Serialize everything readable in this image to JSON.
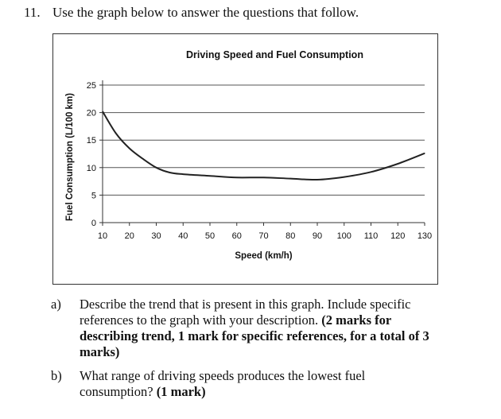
{
  "question": {
    "number": "11.",
    "prompt": "Use the graph below to answer the questions that follow."
  },
  "chart_data": {
    "type": "line",
    "title": "Driving Speed and Fuel Consumption",
    "xlabel": "Speed (km/h)",
    "ylabel": "Fuel Consumption (L/100 km)",
    "xlim": [
      10,
      130
    ],
    "ylim": [
      0,
      25
    ],
    "x_ticks": [
      "10",
      "20",
      "30",
      "40",
      "50",
      "60",
      "70",
      "80",
      "90",
      "100",
      "110",
      "120",
      "130"
    ],
    "y_ticks": [
      "0",
      "5",
      "10",
      "15",
      "20",
      "25"
    ],
    "grid": "horizontal",
    "series": [
      {
        "color": "#222222",
        "x": [
          10,
          15,
          20,
          25,
          30,
          35,
          40,
          50,
          60,
          70,
          80,
          90,
          100,
          110,
          120,
          130
        ],
        "y": [
          20.2,
          16.2,
          13.5,
          11.6,
          10.0,
          9.1,
          8.8,
          8.5,
          8.2,
          8.2,
          8.0,
          7.8,
          8.3,
          9.2,
          10.7,
          12.6
        ]
      }
    ]
  },
  "parts": [
    {
      "label": "a)",
      "text": "Describe the trend that is present in this graph. Include specific references to the graph with your description.",
      "marks": "(2 marks for describing trend, 1 mark for specific references, for a total of 3 marks)"
    },
    {
      "label": "b)",
      "text": "What range of driving speeds produces the lowest fuel consumption?",
      "marks": "(1 mark)"
    }
  ]
}
